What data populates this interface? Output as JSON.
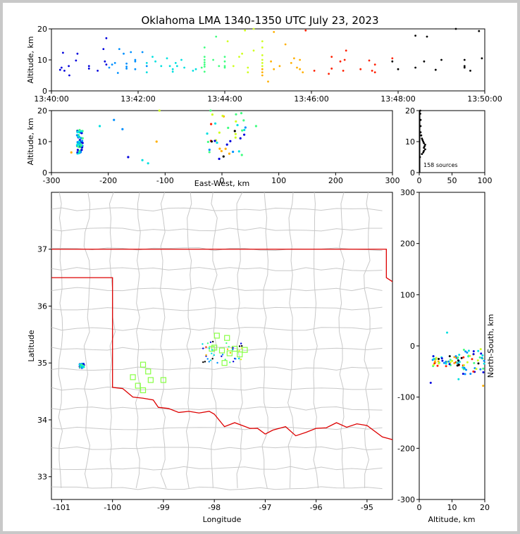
{
  "title": "Oklahoma LMA 1340-1350 UTC July 23, 2023",
  "colors": {
    "state_border": "#dd0000",
    "county_lines": "#c8c8c8",
    "ltg_marker": "#88ff44"
  },
  "colormap": [
    "#0000dd",
    "#0090ff",
    "#00e0e0",
    "#40ff80",
    "#d0ff20",
    "#ffb000",
    "#ff2000",
    "#000000"
  ],
  "chart_data": [
    {
      "id": "alt_time",
      "type": "scatter",
      "xlabel": "",
      "ylabel": "Altitude, km",
      "xticks": [
        "13:40:00",
        "13:42:00",
        "13:44:00",
        "13:46:00",
        "13:48:00",
        "13:50:00"
      ],
      "xlim_minutes": [
        0,
        10
      ],
      "ylim": [
        0,
        20
      ],
      "yticks": [
        0,
        10,
        20
      ],
      "points": [
        [
          0.3,
          6.8
        ],
        [
          0.35,
          7.5
        ],
        [
          0.4,
          12.3
        ],
        [
          0.45,
          6.5
        ],
        [
          0.6,
          8.0
        ],
        [
          0.62,
          5.0
        ],
        [
          0.9,
          12.0
        ],
        [
          0.85,
          9.8
        ],
        [
          1.3,
          7.2
        ],
        [
          1.3,
          8.0
        ],
        [
          1.6,
          6.5
        ],
        [
          1.8,
          13.5
        ],
        [
          1.9,
          17.0
        ],
        [
          1.85,
          9.5
        ],
        [
          1.9,
          8.5
        ],
        [
          2.0,
          7.5
        ],
        [
          2.1,
          8.5
        ],
        [
          2.2,
          9.0
        ],
        [
          2.3,
          5.8
        ],
        [
          2.35,
          13.5
        ],
        [
          2.5,
          12.0
        ],
        [
          2.6,
          7.8
        ],
        [
          2.6,
          8.8
        ],
        [
          2.6,
          7.2
        ],
        [
          2.75,
          12.5
        ],
        [
          2.9,
          7.0
        ],
        [
          2.9,
          9.5
        ],
        [
          2.9,
          10.0
        ],
        [
          3.15,
          12.5
        ],
        [
          3.3,
          8.0
        ],
        [
          3.3,
          9.0
        ],
        [
          3.3,
          6.0
        ],
        [
          3.5,
          11.0
        ],
        [
          3.6,
          9.5
        ],
        [
          3.8,
          8.0
        ],
        [
          4.0,
          10.5
        ],
        [
          4.1,
          8.0
        ],
        [
          4.2,
          7.0
        ],
        [
          4.2,
          6.2
        ],
        [
          4.3,
          9.0
        ],
        [
          4.35,
          8.0
        ],
        [
          4.5,
          10.0
        ],
        [
          4.6,
          7.5
        ],
        [
          4.9,
          6.5
        ],
        [
          5.0,
          7.0
        ],
        [
          5.2,
          7.5
        ],
        [
          5.3,
          6.2
        ],
        [
          5.3,
          7.8
        ],
        [
          5.3,
          8.5
        ],
        [
          5.3,
          9.2
        ],
        [
          5.3,
          10.0
        ],
        [
          5.3,
          11.0
        ],
        [
          5.3,
          14.0
        ],
        [
          5.6,
          10.0
        ],
        [
          5.7,
          17.5
        ],
        [
          5.8,
          8.0
        ],
        [
          6.0,
          11.0
        ],
        [
          6.0,
          9.5
        ],
        [
          6.0,
          8.0
        ],
        [
          6.0,
          7.5
        ],
        [
          6.1,
          16.0
        ],
        [
          6.3,
          8.0
        ],
        [
          6.5,
          11.0
        ],
        [
          6.6,
          12.0
        ],
        [
          6.7,
          19.5
        ],
        [
          6.8,
          6.0
        ],
        [
          6.8,
          7.5
        ],
        [
          7.0,
          20.0
        ],
        [
          7.0,
          13.0
        ],
        [
          7.3,
          16.0
        ],
        [
          7.3,
          14.0
        ],
        [
          7.3,
          11.5
        ],
        [
          7.3,
          10.0
        ],
        [
          7.3,
          9.0
        ],
        [
          7.3,
          8.0
        ],
        [
          7.3,
          7.0
        ],
        [
          7.3,
          6.0
        ],
        [
          7.3,
          5.0
        ],
        [
          7.5,
          3.0
        ],
        [
          7.6,
          9.5
        ],
        [
          7.7,
          7.0
        ],
        [
          7.7,
          19.0
        ],
        [
          7.9,
          8.0
        ],
        [
          8.1,
          15.0
        ],
        [
          8.3,
          9.0
        ],
        [
          8.4,
          10.5
        ],
        [
          8.5,
          7.5
        ],
        [
          8.6,
          10.0
        ],
        [
          8.6,
          7.0
        ],
        [
          8.7,
          6.0
        ],
        [
          8.8,
          19.5
        ],
        [
          9.1,
          6.5
        ],
        [
          9.6,
          5.5
        ],
        [
          9.7,
          7.2
        ],
        [
          9.7,
          11.0
        ],
        [
          10.0,
          9.5
        ],
        [
          10.1,
          6.5
        ],
        [
          10.15,
          10.0
        ],
        [
          10.2,
          13.0
        ],
        [
          10.7,
          7.0
        ],
        [
          11.2,
          6.0
        ],
        [
          11.0,
          9.8
        ],
        [
          11.1,
          6.5
        ],
        [
          11.2,
          8.5
        ],
        [
          11.8,
          10.5
        ],
        [
          11.8,
          9.5
        ],
        [
          12.0,
          7.0
        ],
        [
          12.6,
          17.8
        ],
        [
          12.6,
          7.5
        ],
        [
          12.9,
          9.5
        ],
        [
          13.0,
          17.5
        ],
        [
          13.3,
          6.8
        ],
        [
          13.5,
          10.0
        ],
        [
          14.0,
          20.0
        ],
        [
          14.3,
          10.0
        ],
        [
          14.3,
          8.0
        ],
        [
          14.3,
          7.5
        ],
        [
          14.5,
          6.5
        ],
        [
          14.8,
          19.3
        ],
        [
          14.9,
          10.5
        ]
      ]
    },
    {
      "id": "alt_ew",
      "type": "scatter",
      "xlabel": "East-West, km",
      "ylabel": "Altitude, km",
      "xlim": [
        -300,
        300
      ],
      "ylim": [
        0,
        20
      ],
      "xticks": [
        -300,
        -200,
        -100,
        0,
        100,
        200,
        300
      ],
      "yticks": [
        0,
        10,
        20
      ]
    },
    {
      "id": "alt_hist",
      "type": "scatter",
      "xlabel": "",
      "ylabel": "",
      "xlim": [
        0,
        100
      ],
      "ylim": [
        0,
        20
      ],
      "xticks": [
        0,
        50,
        100
      ],
      "yticks": [
        0,
        10,
        20
      ],
      "annotation": "158 sources"
    },
    {
      "id": "plan_view",
      "type": "scatter",
      "xlabel": "Longitude",
      "ylabel": "Latitude",
      "xlim": [
        -101.2,
        -94.5
      ],
      "ylim": [
        32.6,
        38.0
      ],
      "xticks": [
        -101,
        -100,
        -99,
        -98,
        -97,
        -96,
        -95
      ],
      "yticks": [
        33,
        34,
        35,
        36,
        37
      ],
      "ltg_markers": [
        [
          -97.95,
          35.48
        ],
        [
          -97.75,
          35.44
        ],
        [
          -97.6,
          35.25
        ],
        [
          -97.4,
          35.23
        ],
        [
          -97.5,
          35.15
        ],
        [
          -97.7,
          35.17
        ],
        [
          -97.85,
          35.22
        ],
        [
          -98.05,
          35.25
        ],
        [
          -97.8,
          35.0
        ],
        [
          -99.4,
          34.97
        ],
        [
          -99.3,
          34.85
        ],
        [
          -99.6,
          34.75
        ],
        [
          -99.25,
          34.7
        ],
        [
          -99.0,
          34.7
        ],
        [
          -99.5,
          34.6
        ],
        [
          -99.4,
          34.52
        ],
        [
          -98.0,
          35.27
        ]
      ]
    },
    {
      "id": "ns_alt",
      "type": "scatter",
      "xlabel": "Altitude, km",
      "ylabel": "North-South, km",
      "xlim": [
        0,
        20
      ],
      "ylim": [
        -300,
        300
      ],
      "xticks": [
        0,
        10,
        20
      ],
      "yticks": [
        -300,
        -200,
        -100,
        0,
        100,
        200,
        300
      ]
    }
  ]
}
